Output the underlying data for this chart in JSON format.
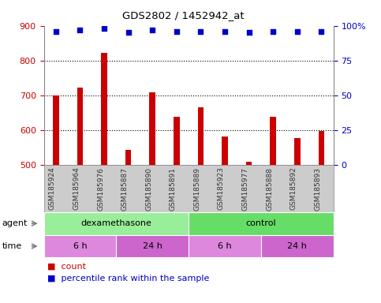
{
  "title": "GDS2802 / 1452942_at",
  "samples": [
    "GSM185924",
    "GSM185964",
    "GSM185976",
    "GSM185887",
    "GSM185890",
    "GSM185891",
    "GSM185889",
    "GSM185923",
    "GSM185977",
    "GSM185888",
    "GSM185892",
    "GSM185893"
  ],
  "counts": [
    700,
    723,
    822,
    543,
    710,
    638,
    665,
    582,
    510,
    638,
    578,
    597
  ],
  "percentile_ranks": [
    96,
    97,
    98,
    95,
    97,
    96,
    96,
    96,
    95,
    96,
    96,
    96
  ],
  "ylim_left": [
    500,
    900
  ],
  "ylim_right": [
    0,
    100
  ],
  "yticks_left": [
    500,
    600,
    700,
    800,
    900
  ],
  "yticks_right": [
    0,
    25,
    50,
    75,
    100
  ],
  "bar_color": "#cc0000",
  "dot_color": "#0000cc",
  "agent_groups": [
    {
      "label": "dexamethasone",
      "start": 0,
      "end": 6,
      "color": "#99ee99"
    },
    {
      "label": "control",
      "start": 6,
      "end": 12,
      "color": "#66dd66"
    }
  ],
  "time_groups": [
    {
      "label": "6 h",
      "start": 0,
      "end": 3,
      "color": "#dd88dd"
    },
    {
      "label": "24 h",
      "start": 3,
      "end": 6,
      "color": "#cc66cc"
    },
    {
      "label": "6 h",
      "start": 6,
      "end": 9,
      "color": "#dd88dd"
    },
    {
      "label": "24 h",
      "start": 9,
      "end": 12,
      "color": "#cc66cc"
    }
  ],
  "tick_label_color": "#333333",
  "left_axis_color": "#cc0000",
  "right_axis_color": "#0000cc",
  "grid_color": "#000000",
  "background_color": "#ffffff",
  "xticklabel_bg": "#cccccc",
  "label_agent": "agent",
  "label_time": "time",
  "legend_count": "count",
  "legend_percentile": "percentile rank within the sample",
  "bar_width": 0.25
}
